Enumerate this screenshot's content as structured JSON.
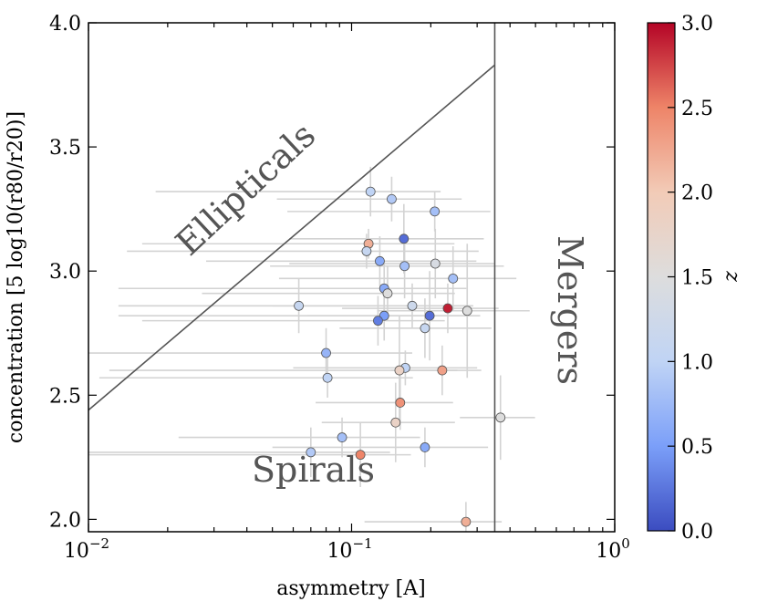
{
  "chart_data": {
    "type": "scatter",
    "xscale": "log",
    "xlim": [
      0.01,
      1.0
    ],
    "ylim": [
      1.95,
      4.0
    ],
    "xlabel": "asymmetry [A]",
    "ylabel": "concentration [5 log10(r80/r20)]",
    "x_ticks": [
      {
        "base": "10",
        "exp": "−2"
      },
      {
        "base": "10",
        "exp": "−1"
      },
      {
        "base": "10",
        "exp": "0"
      }
    ],
    "x_tick_values": [
      0.01,
      0.1,
      1.0
    ],
    "y_ticks": [
      "2.0",
      "2.5",
      "3.0",
      "3.5",
      "4.0"
    ],
    "y_tick_values": [
      2.0,
      2.5,
      3.0,
      3.5,
      4.0
    ],
    "colorbar": {
      "label": "z",
      "range": [
        0.0,
        3.0
      ],
      "ticks": [
        "0.0",
        "0.5",
        "1.0",
        "1.5",
        "2.0",
        "2.5",
        "3.0"
      ],
      "tick_values": [
        0.0,
        0.5,
        1.0,
        1.5,
        2.0,
        2.5,
        3.0
      ],
      "colormap": [
        "#3b4cc0",
        "#7b9ff9",
        "#c0d4f5",
        "#dddddd",
        "#f2cbb7",
        "#ee8468",
        "#b40426"
      ]
    },
    "regions": [
      {
        "name": "Ellipticals",
        "text": "Ellipticals"
      },
      {
        "name": "Spirals",
        "text": "Spirals"
      },
      {
        "name": "Mergers",
        "text": "Mergers"
      }
    ],
    "guides": {
      "elliptical_line": {
        "x": [
          0.01,
          0.35
        ],
        "y": [
          2.44,
          3.83
        ]
      },
      "merger_line": {
        "x": 0.35
      }
    },
    "points": [
      {
        "x": 0.118,
        "y": 3.32,
        "z": 1.0,
        "xerr": [
          0.1,
          0.1
        ],
        "yerr": 0.1
      },
      {
        "x": 0.142,
        "y": 3.29,
        "z": 0.9,
        "xerr": [
          0.09,
          0.12
        ],
        "yerr": 0.09
      },
      {
        "x": 0.207,
        "y": 3.24,
        "z": 0.8,
        "xerr": [
          0.15,
          0.13
        ],
        "yerr": 0.08
      },
      {
        "x": 0.158,
        "y": 3.13,
        "z": 0.2,
        "xerr": [
          0.1,
          0.16
        ],
        "yerr": 0.14
      },
      {
        "x": 0.116,
        "y": 3.11,
        "z": 2.2,
        "xerr": [
          0.1,
          0.13
        ],
        "yerr": 0.06
      },
      {
        "x": 0.114,
        "y": 3.08,
        "z": 1.1,
        "xerr": [
          0.1,
          0.19
        ],
        "yerr": 0.07
      },
      {
        "x": 0.128,
        "y": 3.04,
        "z": 0.6,
        "xerr": [
          0.1,
          0.17
        ],
        "yerr": 0.1
      },
      {
        "x": 0.208,
        "y": 3.03,
        "z": 1.4,
        "xerr": [
          0.15,
          0.14
        ],
        "yerr": 0.14
      },
      {
        "x": 0.159,
        "y": 3.02,
        "z": 0.8,
        "xerr": [
          0.11,
          0.22
        ],
        "yerr": 0.13
      },
      {
        "x": 0.243,
        "y": 2.97,
        "z": 0.8,
        "xerr": [
          0.19,
          0.18
        ],
        "yerr": 0.13
      },
      {
        "x": 0.133,
        "y": 2.93,
        "z": 0.6,
        "xerr": [
          0.12,
          0.14
        ],
        "yerr": 0.1
      },
      {
        "x": 0.137,
        "y": 2.91,
        "z": 1.5,
        "xerr": [
          0.11,
          0.11
        ],
        "yerr": 0.11
      },
      {
        "x": 0.063,
        "y": 2.86,
        "z": 1.1,
        "xerr": [
          0.05,
          0.06
        ],
        "yerr": 0.11
      },
      {
        "x": 0.17,
        "y": 2.86,
        "z": 1.2,
        "xerr": [
          0.12,
          0.12
        ],
        "yerr": 0.09
      },
      {
        "x": 0.232,
        "y": 2.85,
        "z": 2.9,
        "xerr": [
          0.14,
          0.13
        ],
        "yerr": 0.1
      },
      {
        "x": 0.275,
        "y": 2.84,
        "z": 1.5,
        "xerr": [
          0.15,
          0.2
        ],
        "yerr": 0.27
      },
      {
        "x": 0.198,
        "y": 2.82,
        "z": 0.2,
        "xerr": [
          0.13,
          0.11
        ],
        "yerr": 0.18
      },
      {
        "x": 0.133,
        "y": 2.82,
        "z": 0.5,
        "xerr": [
          0.12,
          0.13
        ],
        "yerr": 0.1
      },
      {
        "x": 0.126,
        "y": 2.8,
        "z": 0.3,
        "xerr": [
          0.11,
          0.1
        ],
        "yerr": 0.1
      },
      {
        "x": 0.19,
        "y": 2.77,
        "z": 1.1,
        "xerr": [
          0.1,
          0.15
        ],
        "yerr": 0.12
      },
      {
        "x": 0.08,
        "y": 2.67,
        "z": 0.7,
        "xerr": [
          0.07,
          0.09
        ],
        "yerr": 0.1
      },
      {
        "x": 0.16,
        "y": 2.61,
        "z": 1.0,
        "xerr": [
          0.1,
          0.14
        ],
        "yerr": 0.07
      },
      {
        "x": 0.152,
        "y": 2.6,
        "z": 1.8,
        "xerr": [
          0.14,
          0.1
        ],
        "yerr": 0.22
      },
      {
        "x": 0.221,
        "y": 2.6,
        "z": 2.3,
        "xerr": [
          0.08,
          0.09
        ],
        "yerr": 0.1
      },
      {
        "x": 0.081,
        "y": 2.57,
        "z": 1.0,
        "xerr": [
          0.07,
          0.09
        ],
        "yerr": 0.08
      },
      {
        "x": 0.153,
        "y": 2.47,
        "z": 2.4,
        "xerr": [
          0.08,
          0.09
        ],
        "yerr": 0.11
      },
      {
        "x": 0.147,
        "y": 2.39,
        "z": 1.8,
        "xerr": [
          0.07,
          0.1
        ],
        "yerr": 0.16
      },
      {
        "x": 0.368,
        "y": 2.41,
        "z": 1.5,
        "xerr": [
          0.11,
          0.13
        ],
        "yerr": 0.17
      },
      {
        "x": 0.092,
        "y": 2.33,
        "z": 0.8,
        "xerr": [
          0.07,
          0.09
        ],
        "yerr": 0.08
      },
      {
        "x": 0.19,
        "y": 2.29,
        "z": 0.6,
        "xerr": [
          0.14,
          0.14
        ],
        "yerr": 0.08
      },
      {
        "x": 0.07,
        "y": 2.27,
        "z": 0.9,
        "xerr": [
          0.06,
          0.07
        ],
        "yerr": 0.1
      },
      {
        "x": 0.108,
        "y": 2.26,
        "z": 2.5,
        "xerr": [
          0.1,
          0.06
        ],
        "yerr": 0.13
      },
      {
        "x": 0.272,
        "y": 1.99,
        "z": 2.2,
        "xerr": [
          0.16,
          0.1
        ],
        "yerr": 0.08
      }
    ]
  }
}
